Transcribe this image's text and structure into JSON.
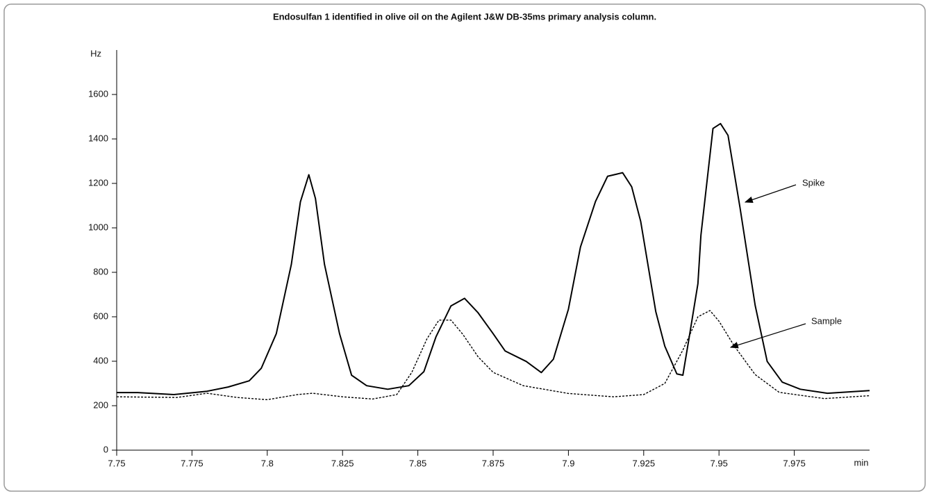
{
  "chart_data": {
    "type": "line",
    "title": "Endosulfan 1 identified in olive oil on the Agilent J&W DB-35ms primary analysis column.",
    "y_unit": "Hz",
    "x_unit": "min",
    "xlim": [
      7.75,
      8.0
    ],
    "ylim": [
      0,
      1800
    ],
    "xticks": [
      7.75,
      7.775,
      7.8,
      7.825,
      7.85,
      7.875,
      7.9,
      7.925,
      7.95,
      7.975
    ],
    "yticks": [
      0,
      200,
      400,
      600,
      800,
      1000,
      1200,
      1400,
      1600
    ],
    "grid": false,
    "series": [
      {
        "name": "Spike",
        "color": "#000000",
        "dashed": false,
        "x": [
          7.75,
          7.757,
          7.769,
          7.78,
          7.787,
          7.794,
          7.798,
          7.803,
          7.808,
          7.811,
          7.8138,
          7.816,
          7.819,
          7.824,
          7.828,
          7.833,
          7.84,
          7.847,
          7.852,
          7.856,
          7.861,
          7.8655,
          7.87,
          7.875,
          7.879,
          7.886,
          7.891,
          7.895,
          7.9,
          7.904,
          7.909,
          7.913,
          7.918,
          7.921,
          7.924,
          7.929,
          7.932,
          7.936,
          7.938,
          7.94,
          7.943,
          7.944,
          7.948,
          7.9505,
          7.953,
          7.957,
          7.962,
          7.966,
          7.971,
          7.977,
          7.986,
          8.0
        ],
        "values": [
          259,
          259,
          250,
          265,
          284,
          312,
          368,
          524,
          836,
          1117,
          1239,
          1132,
          836,
          524,
          337,
          290,
          274,
          290,
          353,
          509,
          649,
          683,
          618,
          524,
          446,
          399,
          349,
          409,
          634,
          914,
          1119,
          1232,
          1248,
          1185,
          1029,
          624,
          468,
          343,
          337,
          499,
          749,
          967,
          1447,
          1469,
          1416,
          1089,
          652,
          399,
          306,
          274,
          256,
          268
        ]
      },
      {
        "name": "Sample",
        "color": "#000000",
        "dashed": true,
        "x": [
          7.75,
          7.77,
          7.78,
          7.79,
          7.8,
          7.81,
          7.815,
          7.825,
          7.835,
          7.843,
          7.848,
          7.853,
          7.857,
          7.861,
          7.865,
          7.87,
          7.875,
          7.885,
          7.9,
          7.915,
          7.925,
          7.932,
          7.938,
          7.943,
          7.947,
          7.95,
          7.955,
          7.962,
          7.97,
          7.985,
          8.0
        ],
        "values": [
          240,
          237,
          256,
          237,
          227,
          250,
          256,
          240,
          230,
          250,
          350,
          500,
          585,
          585,
          520,
          420,
          350,
          290,
          255,
          240,
          250,
          300,
          450,
          600,
          628,
          580,
          470,
          340,
          260,
          232,
          245
        ]
      }
    ]
  }
}
